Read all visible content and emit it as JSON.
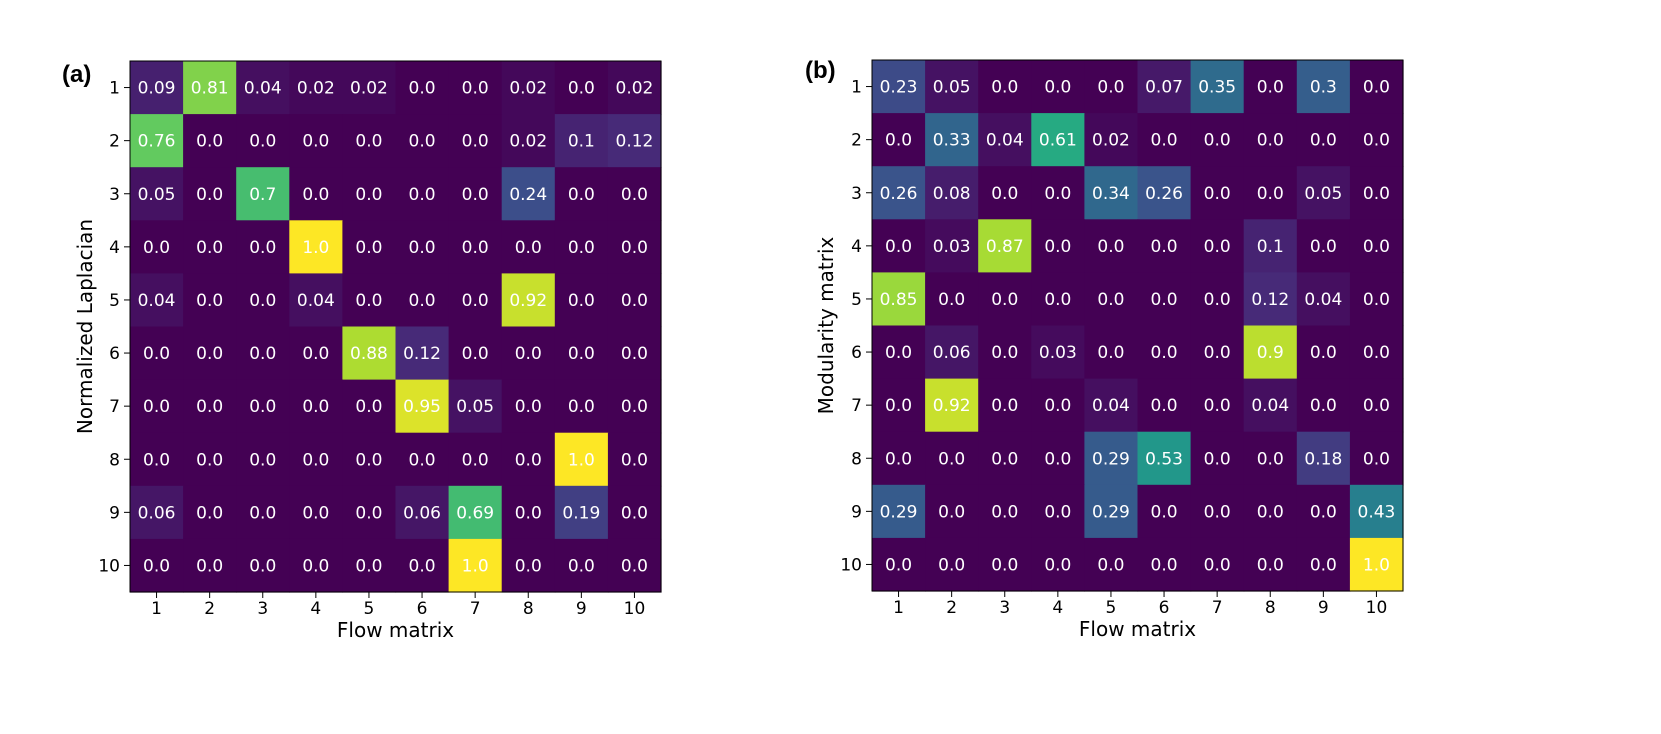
{
  "chart_data": [
    {
      "type": "heatmap",
      "panel_label": "(a)",
      "xlabel": "Flow matrix",
      "ylabel": "Normalized Laplacian",
      "x_categories": [
        "1",
        "2",
        "3",
        "4",
        "5",
        "6",
        "7",
        "8",
        "9",
        "10"
      ],
      "y_categories": [
        "1",
        "2",
        "3",
        "4",
        "5",
        "6",
        "7",
        "8",
        "9",
        "10"
      ],
      "value_range": [
        0,
        1
      ],
      "colormap": "viridis",
      "cell_labels": [
        [
          "0.09",
          "0.81",
          "0.04",
          "0.02",
          "0.02",
          "0.0",
          "0.0",
          "0.02",
          "0.0",
          "0.02"
        ],
        [
          "0.76",
          "0.0",
          "0.0",
          "0.0",
          "0.0",
          "0.0",
          "0.0",
          "0.02",
          "0.1",
          "0.12"
        ],
        [
          "0.05",
          "0.0",
          "0.7",
          "0.0",
          "0.0",
          "0.0",
          "0.0",
          "0.24",
          "0.0",
          "0.0"
        ],
        [
          "0.0",
          "0.0",
          "0.0",
          "1.0",
          "0.0",
          "0.0",
          "0.0",
          "0.0",
          "0.0",
          "0.0"
        ],
        [
          "0.04",
          "0.0",
          "0.0",
          "0.04",
          "0.0",
          "0.0",
          "0.0",
          "0.92",
          "0.0",
          "0.0"
        ],
        [
          "0.0",
          "0.0",
          "0.0",
          "0.0",
          "0.88",
          "0.12",
          "0.0",
          "0.0",
          "0.0",
          "0.0"
        ],
        [
          "0.0",
          "0.0",
          "0.0",
          "0.0",
          "0.0",
          "0.95",
          "0.05",
          "0.0",
          "0.0",
          "0.0"
        ],
        [
          "0.0",
          "0.0",
          "0.0",
          "0.0",
          "0.0",
          "0.0",
          "0.0",
          "0.0",
          "1.0",
          "0.0"
        ],
        [
          "0.06",
          "0.0",
          "0.0",
          "0.0",
          "0.0",
          "0.06",
          "0.69",
          "0.0",
          "0.19",
          "0.0"
        ],
        [
          "0.0",
          "0.0",
          "0.0",
          "0.0",
          "0.0",
          "0.0",
          "1.0",
          "0.0",
          "0.0",
          "0.0"
        ]
      ]
    },
    {
      "type": "heatmap",
      "panel_label": "(b)",
      "xlabel": "Flow matrix",
      "ylabel": "Modularity matrix",
      "x_categories": [
        "1",
        "2",
        "3",
        "4",
        "5",
        "6",
        "7",
        "8",
        "9",
        "10"
      ],
      "y_categories": [
        "1",
        "2",
        "3",
        "4",
        "5",
        "6",
        "7",
        "8",
        "9",
        "10"
      ],
      "value_range": [
        0,
        1
      ],
      "colormap": "viridis",
      "cell_labels": [
        [
          "0.23",
          "0.05",
          "0.0",
          "0.0",
          "0.0",
          "0.07",
          "0.35",
          "0.0",
          "0.3",
          "0.0"
        ],
        [
          "0.0",
          "0.33",
          "0.04",
          "0.61",
          "0.02",
          "0.0",
          "0.0",
          "0.0",
          "0.0",
          "0.0"
        ],
        [
          "0.26",
          "0.08",
          "0.0",
          "0.0",
          "0.34",
          "0.26",
          "0.0",
          "0.0",
          "0.05",
          "0.0"
        ],
        [
          "0.0",
          "0.03",
          "0.87",
          "0.0",
          "0.0",
          "0.0",
          "0.0",
          "0.1",
          "0.0",
          "0.0"
        ],
        [
          "0.85",
          "0.0",
          "0.0",
          "0.0",
          "0.0",
          "0.0",
          "0.0",
          "0.12",
          "0.04",
          "0.0"
        ],
        [
          "0.0",
          "0.06",
          "0.0",
          "0.03",
          "0.0",
          "0.0",
          "0.0",
          "0.9",
          "0.0",
          "0.0"
        ],
        [
          "0.0",
          "0.92",
          "0.0",
          "0.0",
          "0.04",
          "0.0",
          "0.0",
          "0.04",
          "0.0",
          "0.0"
        ],
        [
          "0.0",
          "0.0",
          "0.0",
          "0.0",
          "0.29",
          "0.53",
          "0.0",
          "0.0",
          "0.18",
          "0.0"
        ],
        [
          "0.29",
          "0.0",
          "0.0",
          "0.0",
          "0.29",
          "0.0",
          "0.0",
          "0.0",
          "0.0",
          "0.43"
        ],
        [
          "0.0",
          "0.0",
          "0.0",
          "0.0",
          "0.0",
          "0.0",
          "0.0",
          "0.0",
          "0.0",
          "1.0"
        ]
      ]
    }
  ]
}
